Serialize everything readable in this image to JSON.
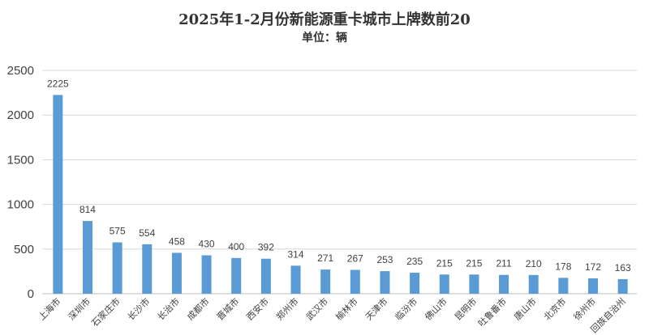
{
  "chart_data": {
    "type": "bar",
    "title": "2025年1-2月份新能源重卡城市上牌数前20",
    "subtitle": "单位：辆",
    "xlabel": "",
    "ylabel": "",
    "ylim": [
      0,
      2500
    ],
    "yticks": [
      0,
      500,
      1000,
      1500,
      2000,
      2500
    ],
    "grid": true,
    "bar_color": "#5b9bd5",
    "categories": [
      "上海市",
      "深圳市",
      "石家庄市",
      "长沙市",
      "长治市",
      "成都市",
      "晋城市",
      "西安市",
      "郑州市",
      "武汉市",
      "榆林市",
      "天津市",
      "临汾市",
      "佛山市",
      "昆明市",
      "吐鲁番市",
      "唐山市",
      "北京市",
      "徐州市",
      "回族自治州"
    ],
    "values": [
      2225,
      814,
      575,
      554,
      458,
      430,
      400,
      392,
      314,
      271,
      267,
      253,
      235,
      215,
      215,
      211,
      210,
      178,
      172,
      163
    ]
  }
}
